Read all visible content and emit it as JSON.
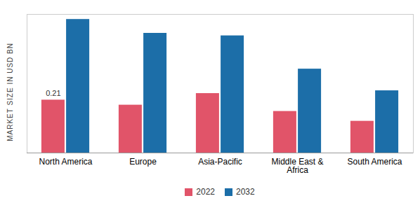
{
  "chart_data": {
    "type": "bar",
    "y_label": "MARKET SIZE IN USD BN",
    "categories": [
      "North America",
      "Europe",
      "Asia-Pacific",
      "Middle East & Africa",
      "South America"
    ],
    "series": [
      {
        "name": "2022",
        "color": "#e15469",
        "values": [
          0.21,
          0.19,
          0.236,
          0.165,
          0.126
        ],
        "value_labels": [
          "0.21",
          null,
          null,
          null,
          null
        ]
      },
      {
        "name": "2032",
        "color": "#1c6ea8",
        "values": [
          0.53,
          0.475,
          0.465,
          0.333,
          0.247
        ]
      }
    ],
    "ylim": [
      0,
      0.55
    ],
    "yticks": [],
    "tick_labels": "x",
    "data_labels": true,
    "legend": "bottom"
  }
}
